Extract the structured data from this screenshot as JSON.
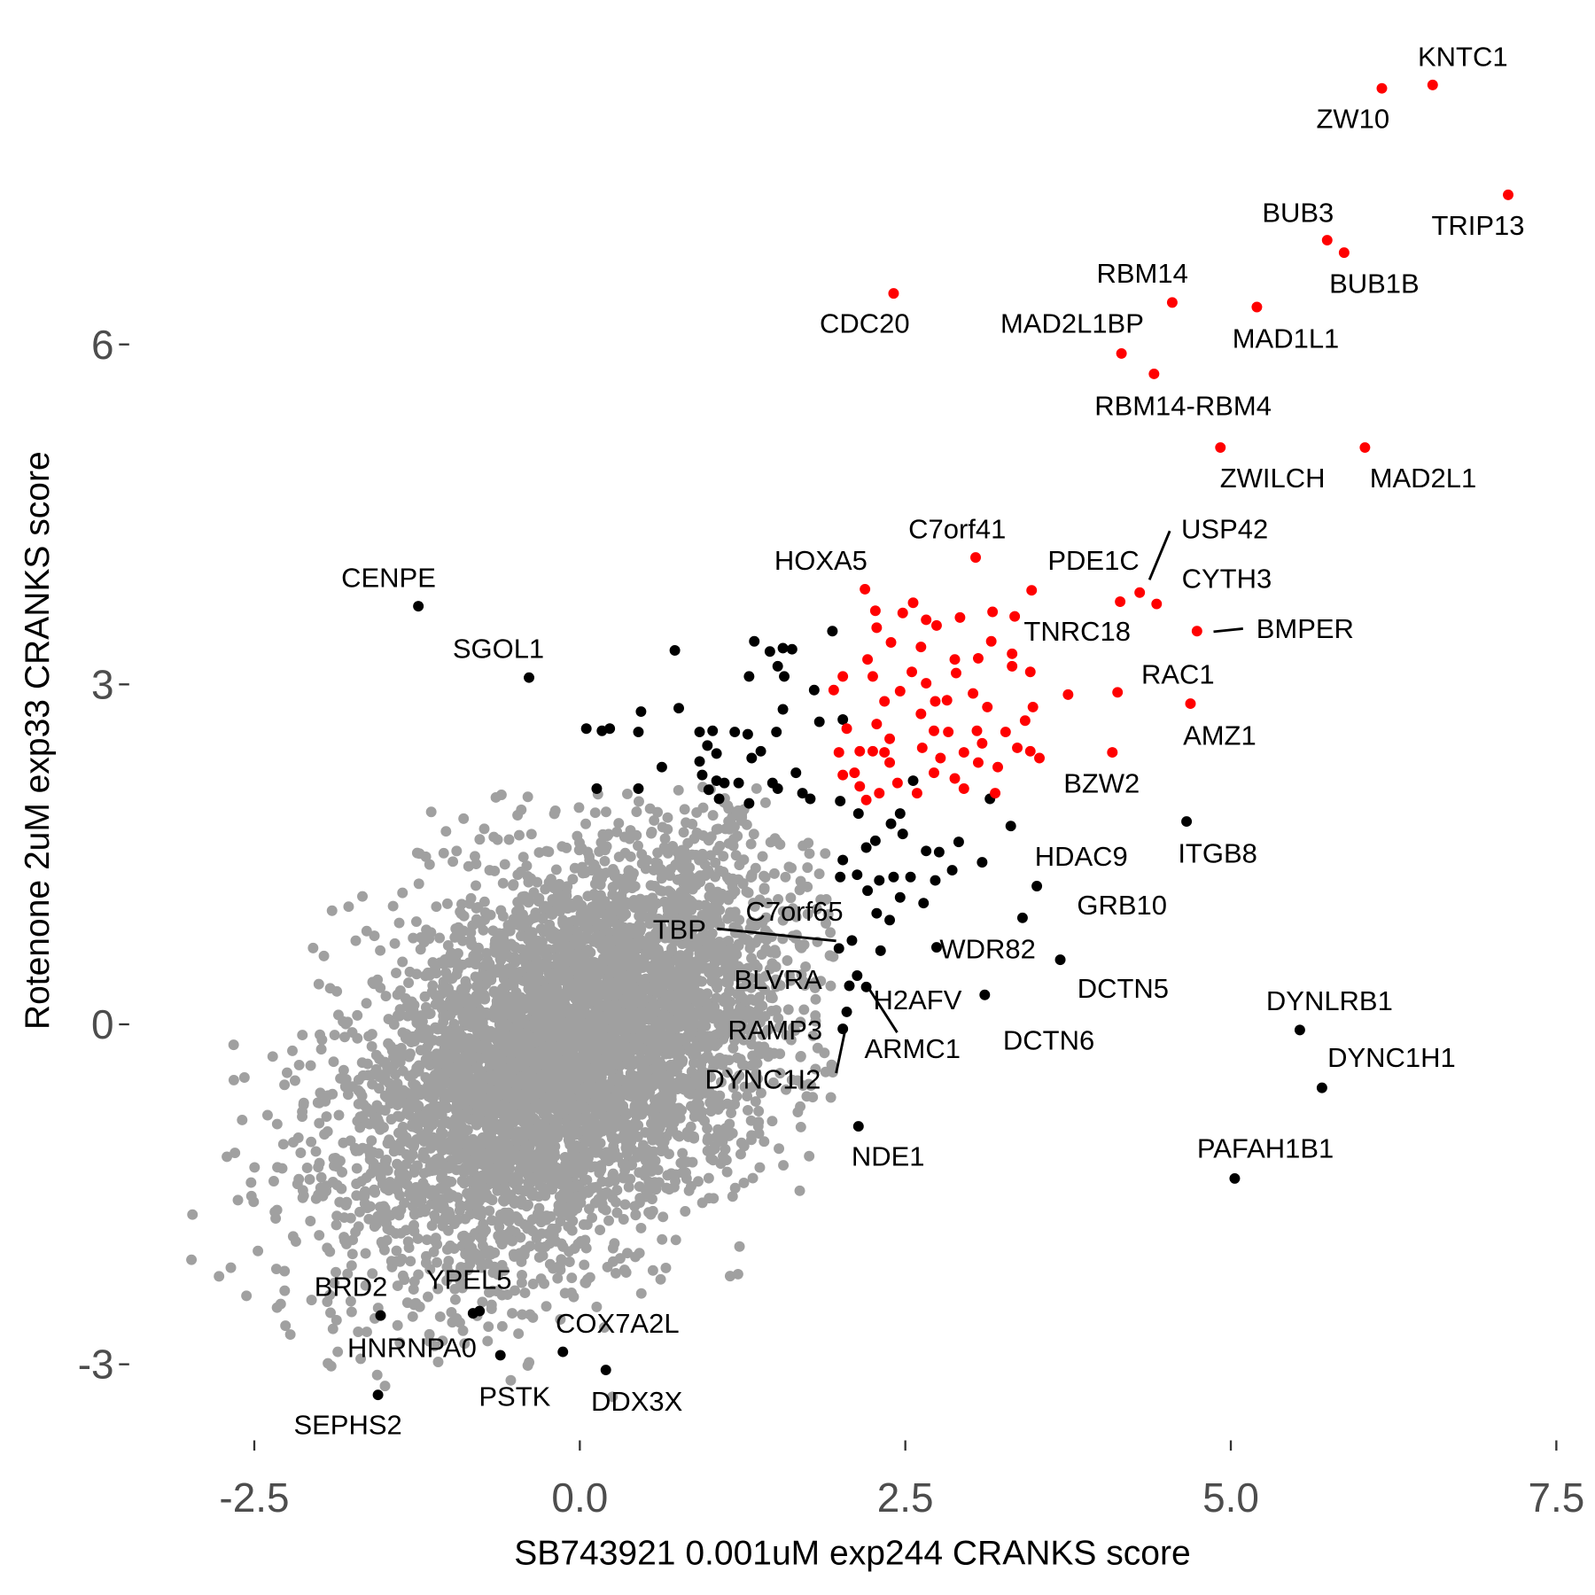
{
  "chart_data": {
    "type": "scatter",
    "title": "",
    "xlabel": "SB743921 0.001uM exp244 CRANKS score",
    "ylabel": "Rotenone 2uM exp33 CRANKS score",
    "xlim": [
      -3.1,
      7.6
    ],
    "ylim": [
      -3.6,
      8.9
    ],
    "xticks": [
      -2.5,
      0.0,
      2.5,
      5.0,
      7.5
    ],
    "xtick_labels": [
      "-2.5",
      "0.0",
      "2.5",
      "5.0",
      "7.5"
    ],
    "yticks": [
      -3,
      0,
      3,
      6
    ],
    "ytick_labels": [
      "-3",
      "0",
      "3",
      "6"
    ],
    "grid": false,
    "colors": {
      "background": "#A0A0A0",
      "both": "#FF0000",
      "one": "#000000"
    },
    "labeled_points": [
      {
        "label": "KNTC1",
        "x": 6.55,
        "y": 8.29,
        "group": "both"
      },
      {
        "label": "ZW10",
        "x": 6.16,
        "y": 8.26,
        "group": "both"
      },
      {
        "label": "TRIP13",
        "x": 7.13,
        "y": 7.32,
        "group": "both"
      },
      {
        "label": "BUB3",
        "x": 5.74,
        "y": 6.92,
        "group": "both"
      },
      {
        "label": "BUB1B",
        "x": 5.87,
        "y": 6.81,
        "group": "both"
      },
      {
        "label": "CDC20",
        "x": 2.41,
        "y": 6.45,
        "group": "both"
      },
      {
        "label": "RBM14",
        "x": 4.55,
        "y": 6.37,
        "group": "both"
      },
      {
        "label": "MAD1L1",
        "x": 5.2,
        "y": 6.33,
        "group": "both"
      },
      {
        "label": "MAD2L1BP",
        "x": 4.16,
        "y": 5.92,
        "group": "both"
      },
      {
        "label": "RBM14-RBM4",
        "x": 4.41,
        "y": 5.74,
        "group": "both"
      },
      {
        "label": "ZWILCH",
        "x": 4.92,
        "y": 5.09,
        "group": "both"
      },
      {
        "label": "MAD2L1",
        "x": 6.03,
        "y": 5.09,
        "group": "both"
      },
      {
        "label": "C7orf41",
        "x": 3.04,
        "y": 4.12,
        "group": "both"
      },
      {
        "label": "HOXA5",
        "x": 2.19,
        "y": 3.84,
        "group": "both"
      },
      {
        "label": "PDE1C",
        "x": 4.15,
        "y": 3.73,
        "group": "both"
      },
      {
        "label": "USP42",
        "x": 4.3,
        "y": 3.81,
        "group": "both"
      },
      {
        "label": "CYTH3",
        "x": 4.43,
        "y": 3.71,
        "group": "both"
      },
      {
        "label": "TNRC18",
        "x": 3.47,
        "y": 3.83,
        "group": "both"
      },
      {
        "label": "BMPER",
        "x": 4.74,
        "y": 3.47,
        "group": "both"
      },
      {
        "label": "RAC1",
        "x": 4.13,
        "y": 2.93,
        "group": "both"
      },
      {
        "label": "AMZ1",
        "x": 4.69,
        "y": 2.83,
        "group": "both"
      },
      {
        "label": "BZW2",
        "x": 4.09,
        "y": 2.4,
        "group": "both"
      },
      {
        "label": "CENPE",
        "x": -1.24,
        "y": 3.69,
        "group": "one"
      },
      {
        "label": "SGOL1",
        "x": -0.39,
        "y": 3.06,
        "group": "one"
      },
      {
        "label": "ITGB8",
        "x": 4.66,
        "y": 1.79,
        "group": "one"
      },
      {
        "label": "HDAC9",
        "x": 3.51,
        "y": 1.22,
        "group": "one"
      },
      {
        "label": "GRB10",
        "x": 3.4,
        "y": 0.94,
        "group": "one"
      },
      {
        "label": "WDR82",
        "x": 2.74,
        "y": 0.68,
        "group": "one"
      },
      {
        "label": "DCTN5",
        "x": 3.69,
        "y": 0.57,
        "group": "one"
      },
      {
        "label": "DCTN6",
        "x": 3.11,
        "y": 0.26,
        "group": "one"
      },
      {
        "label": "DYNLRB1",
        "x": 5.53,
        "y": -0.05,
        "group": "one"
      },
      {
        "label": "DYNC1H1",
        "x": 5.7,
        "y": -0.56,
        "group": "one"
      },
      {
        "label": "PAFAH1B1",
        "x": 5.03,
        "y": -1.36,
        "group": "one"
      },
      {
        "label": "NDE1",
        "x": 2.14,
        "y": -0.9,
        "group": "one"
      },
      {
        "label": "C7orf65",
        "x": 2.09,
        "y": 0.74,
        "group": "one"
      },
      {
        "label": "TBP",
        "x": 1.99,
        "y": 0.67,
        "group": "one"
      },
      {
        "label": "BLVRA",
        "x": 2.07,
        "y": 0.34,
        "group": "one"
      },
      {
        "label": "H2AFV",
        "x": 2.13,
        "y": 0.43,
        "group": "one"
      },
      {
        "label": "ARMC1",
        "x": 2.2,
        "y": 0.33,
        "group": "one"
      },
      {
        "label": "RAMP3",
        "x": 2.05,
        "y": 0.11,
        "group": "one"
      },
      {
        "label": "DYNC1I2",
        "x": 2.02,
        "y": -0.04,
        "group": "one"
      },
      {
        "label": "BRD2",
        "x": -1.53,
        "y": -2.57,
        "group": "one"
      },
      {
        "label": "YPEL5",
        "x": -0.77,
        "y": -2.53,
        "group": "one"
      },
      {
        "label": "HNRNPA0",
        "x": -0.82,
        "y": -2.55,
        "group": "one"
      },
      {
        "label": "PSTK",
        "x": -0.61,
        "y": -2.92,
        "group": "one"
      },
      {
        "label": "COX7A2L",
        "x": -0.13,
        "y": -2.89,
        "group": "one"
      },
      {
        "label": "DDX3X",
        "x": 0.2,
        "y": -3.05,
        "group": "one"
      },
      {
        "label": "SEPHS2",
        "x": -1.55,
        "y": -3.27,
        "group": "one"
      }
    ],
    "unlabeled_red": [
      [
        2.27,
        3.65
      ],
      [
        2.28,
        3.5
      ],
      [
        2.48,
        3.63
      ],
      [
        2.56,
        3.72
      ],
      [
        2.66,
        3.57
      ],
      [
        2.74,
        3.52
      ],
      [
        2.92,
        3.59
      ],
      [
        3.17,
        3.64
      ],
      [
        3.34,
        3.6
      ],
      [
        2.02,
        3.07
      ],
      [
        2.21,
        3.22
      ],
      [
        2.39,
        3.37
      ],
      [
        2.62,
        3.33
      ],
      [
        2.88,
        3.22
      ],
      [
        3.06,
        3.23
      ],
      [
        3.32,
        3.27
      ],
      [
        3.46,
        3.11
      ],
      [
        3.75,
        2.91
      ],
      [
        1.95,
        2.95
      ],
      [
        2.25,
        3.07
      ],
      [
        2.34,
        2.85
      ],
      [
        2.46,
        2.94
      ],
      [
        2.55,
        3.11
      ],
      [
        2.66,
        3.01
      ],
      [
        2.73,
        2.85
      ],
      [
        2.82,
        2.86
      ],
      [
        2.89,
        3.1
      ],
      [
        3.02,
        2.92
      ],
      [
        3.16,
        3.38
      ],
      [
        3.32,
        3.16
      ],
      [
        3.48,
        2.8
      ],
      [
        3.42,
        2.68
      ],
      [
        3.13,
        2.8
      ],
      [
        3.05,
        2.59
      ],
      [
        3.27,
        2.58
      ],
      [
        3.36,
        2.44
      ],
      [
        3.46,
        2.41
      ],
      [
        3.53,
        2.35
      ],
      [
        2.05,
        2.61
      ],
      [
        2.15,
        2.41
      ],
      [
        2.25,
        2.41
      ],
      [
        1.99,
        2.4
      ],
      [
        2.38,
        2.52
      ],
      [
        2.28,
        2.65
      ],
      [
        2.62,
        2.74
      ],
      [
        2.72,
        2.59
      ],
      [
        2.83,
        2.58
      ],
      [
        2.63,
        2.44
      ],
      [
        2.77,
        2.35
      ],
      [
        2.95,
        2.4
      ],
      [
        3.06,
        2.31
      ],
      [
        3.21,
        2.27
      ],
      [
        2.02,
        2.2
      ],
      [
        2.15,
        2.1
      ],
      [
        2.2,
        1.98
      ],
      [
        2.3,
        2.04
      ],
      [
        2.44,
        2.13
      ],
      [
        2.59,
        2.04
      ],
      [
        2.72,
        2.22
      ],
      [
        2.88,
        2.17
      ],
      [
        2.95,
        2.08
      ],
      [
        3.19,
        2.04
      ],
      [
        3.09,
        2.48
      ],
      [
        2.38,
        2.31
      ],
      [
        2.11,
        2.22
      ],
      [
        2.34,
        2.4
      ]
    ],
    "unlabeled_black": [
      [
        0.73,
        3.3
      ],
      [
        1.34,
        3.38
      ],
      [
        1.46,
        3.29
      ],
      [
        1.56,
        3.32
      ],
      [
        1.63,
        3.31
      ],
      [
        1.52,
        3.16
      ],
      [
        1.57,
        3.07
      ],
      [
        1.3,
        3.07
      ],
      [
        1.94,
        3.47
      ],
      [
        1.8,
        2.95
      ],
      [
        1.56,
        2.78
      ],
      [
        1.84,
        2.67
      ],
      [
        2.02,
        2.69
      ],
      [
        1.51,
        2.58
      ],
      [
        1.29,
        2.56
      ],
      [
        1.39,
        2.41
      ],
      [
        1.32,
        2.35
      ],
      [
        1.19,
        2.58
      ],
      [
        1.02,
        2.59
      ],
      [
        0.98,
        2.46
      ],
      [
        0.76,
        2.79
      ],
      [
        0.92,
        2.58
      ],
      [
        1.05,
        2.39
      ],
      [
        0.92,
        2.32
      ],
      [
        0.94,
        2.2
      ],
      [
        1.05,
        2.15
      ],
      [
        1.11,
        2.13
      ],
      [
        1.22,
        2.13
      ],
      [
        1.48,
        2.13
      ],
      [
        1.66,
        2.22
      ],
      [
        1.71,
        2.04
      ],
      [
        1.77,
        1.99
      ],
      [
        0.47,
        2.76
      ],
      [
        0.45,
        2.58
      ],
      [
        0.17,
        2.59
      ],
      [
        0.05,
        2.61
      ],
      [
        0.23,
        2.61
      ],
      [
        0.13,
        2.08
      ],
      [
        0.45,
        2.08
      ],
      [
        0.63,
        2.27
      ],
      [
        0.99,
        2.07
      ],
      [
        1.07,
        1.99
      ],
      [
        1.3,
        1.95
      ],
      [
        1.52,
        2.08
      ],
      [
        2.56,
        2.15
      ],
      [
        2.0,
        1.97
      ],
      [
        2.14,
        1.86
      ],
      [
        2.46,
        1.86
      ],
      [
        2.39,
        1.77
      ],
      [
        2.48,
        1.68
      ],
      [
        3.31,
        1.75
      ],
      [
        2.91,
        1.61
      ],
      [
        3.09,
        1.43
      ],
      [
        2.76,
        1.52
      ],
      [
        2.66,
        1.53
      ],
      [
        2.86,
        1.36
      ],
      [
        2.73,
        1.27
      ],
      [
        2.64,
        1.07
      ],
      [
        2.27,
        1.62
      ],
      [
        2.2,
        1.56
      ],
      [
        2.13,
        1.32
      ],
      [
        2.02,
        1.45
      ],
      [
        2.0,
        1.3
      ],
      [
        2.21,
        1.18
      ],
      [
        2.3,
        1.27
      ],
      [
        2.41,
        1.3
      ],
      [
        2.46,
        1.12
      ],
      [
        2.54,
        1.3
      ],
      [
        2.38,
        0.92
      ],
      [
        2.28,
        0.98
      ],
      [
        3.15,
        1.99
      ],
      [
        2.31,
        0.65
      ]
    ],
    "background_cloud": {
      "center": [
        -0.1,
        -0.25
      ],
      "sd": [
        0.85,
        0.95
      ],
      "correlation": 0.45
    }
  }
}
